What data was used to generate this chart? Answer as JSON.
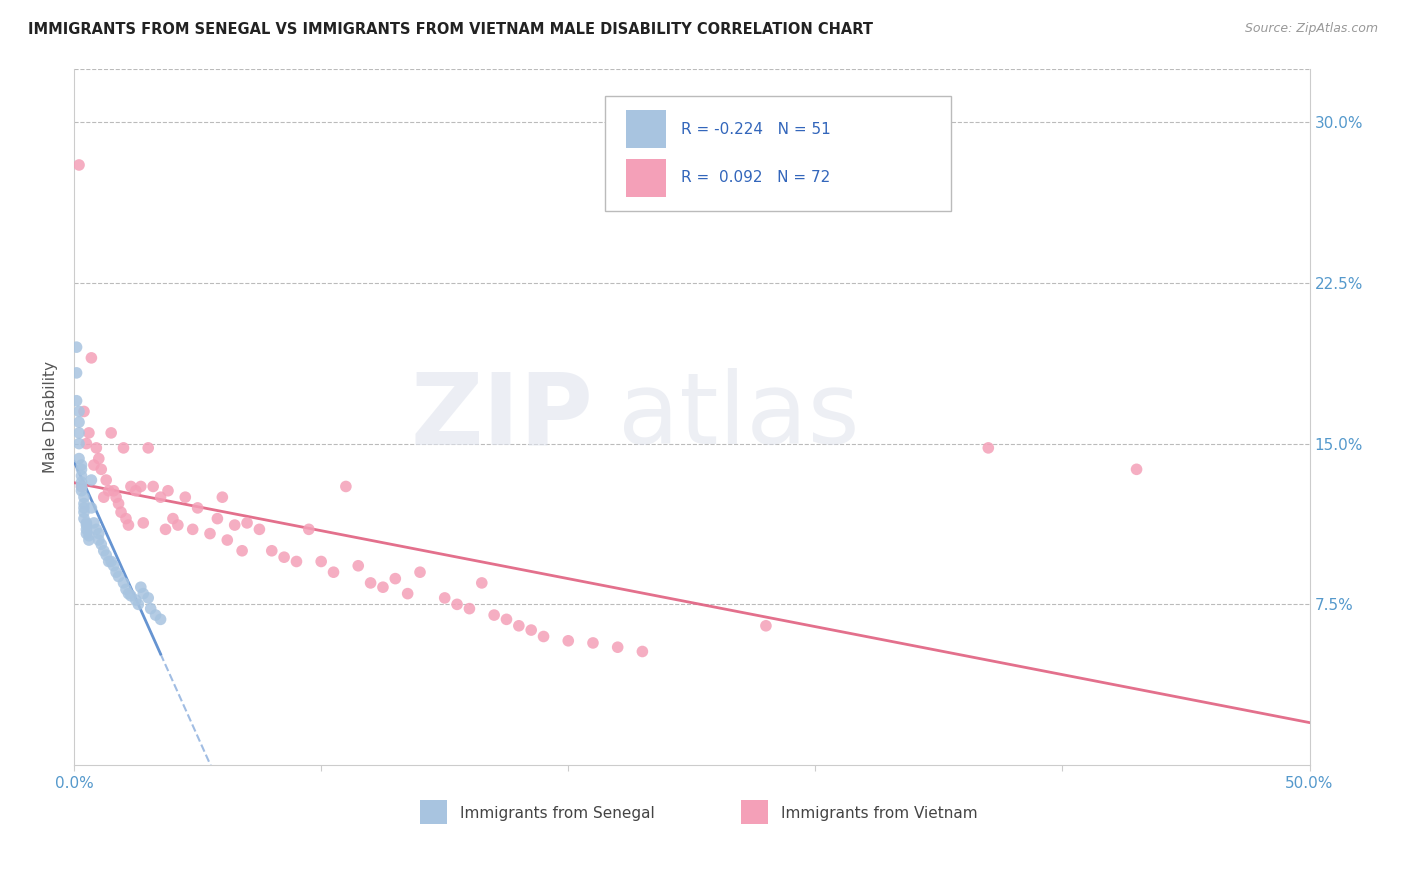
{
  "title": "IMMIGRANTS FROM SENEGAL VS IMMIGRANTS FROM VIETNAM MALE DISABILITY CORRELATION CHART",
  "source": "Source: ZipAtlas.com",
  "ylabel": "Male Disability",
  "xlim": [
    0.0,
    0.5
  ],
  "ylim": [
    0.0,
    0.325
  ],
  "ytick_positions": [
    0.075,
    0.15,
    0.225,
    0.3
  ],
  "ytick_labels": [
    "7.5%",
    "15.0%",
    "22.5%",
    "30.0%"
  ],
  "legend_R1": "-0.224",
  "legend_N1": "51",
  "legend_R2": "0.092",
  "legend_N2": "72",
  "color_senegal": "#a8c4e0",
  "color_vietnam": "#f4a0b8",
  "trendline_senegal_color": "#5588cc",
  "trendline_vietnam_color": "#e06080",
  "senegal_x": [
    0.001,
    0.001,
    0.001,
    0.002,
    0.002,
    0.002,
    0.002,
    0.002,
    0.003,
    0.003,
    0.003,
    0.003,
    0.003,
    0.003,
    0.004,
    0.004,
    0.004,
    0.004,
    0.004,
    0.005,
    0.005,
    0.005,
    0.005,
    0.006,
    0.006,
    0.007,
    0.007,
    0.008,
    0.009,
    0.01,
    0.01,
    0.011,
    0.012,
    0.013,
    0.014,
    0.015,
    0.016,
    0.017,
    0.018,
    0.02,
    0.021,
    0.022,
    0.023,
    0.025,
    0.026,
    0.027,
    0.028,
    0.03,
    0.031,
    0.033,
    0.035
  ],
  "senegal_y": [
    0.195,
    0.183,
    0.17,
    0.165,
    0.16,
    0.155,
    0.15,
    0.143,
    0.14,
    0.138,
    0.135,
    0.132,
    0.13,
    0.128,
    0.125,
    0.122,
    0.12,
    0.118,
    0.115,
    0.113,
    0.112,
    0.11,
    0.108,
    0.107,
    0.105,
    0.133,
    0.12,
    0.113,
    0.11,
    0.108,
    0.105,
    0.103,
    0.1,
    0.098,
    0.095,
    0.095,
    0.093,
    0.09,
    0.088,
    0.085,
    0.082,
    0.08,
    0.079,
    0.077,
    0.075,
    0.083,
    0.08,
    0.078,
    0.073,
    0.07,
    0.068
  ],
  "vietnam_x": [
    0.002,
    0.003,
    0.004,
    0.005,
    0.006,
    0.007,
    0.008,
    0.009,
    0.01,
    0.011,
    0.012,
    0.013,
    0.014,
    0.015,
    0.016,
    0.017,
    0.018,
    0.019,
    0.02,
    0.021,
    0.022,
    0.023,
    0.025,
    0.027,
    0.028,
    0.03,
    0.032,
    0.035,
    0.037,
    0.038,
    0.04,
    0.042,
    0.045,
    0.048,
    0.05,
    0.055,
    0.058,
    0.06,
    0.062,
    0.065,
    0.068,
    0.07,
    0.075,
    0.08,
    0.085,
    0.09,
    0.095,
    0.1,
    0.105,
    0.11,
    0.115,
    0.12,
    0.125,
    0.13,
    0.135,
    0.14,
    0.15,
    0.155,
    0.16,
    0.165,
    0.17,
    0.175,
    0.18,
    0.185,
    0.19,
    0.2,
    0.21,
    0.22,
    0.23,
    0.28,
    0.37,
    0.43
  ],
  "vietnam_y": [
    0.28,
    0.13,
    0.165,
    0.15,
    0.155,
    0.19,
    0.14,
    0.148,
    0.143,
    0.138,
    0.125,
    0.133,
    0.128,
    0.155,
    0.128,
    0.125,
    0.122,
    0.118,
    0.148,
    0.115,
    0.112,
    0.13,
    0.128,
    0.13,
    0.113,
    0.148,
    0.13,
    0.125,
    0.11,
    0.128,
    0.115,
    0.112,
    0.125,
    0.11,
    0.12,
    0.108,
    0.115,
    0.125,
    0.105,
    0.112,
    0.1,
    0.113,
    0.11,
    0.1,
    0.097,
    0.095,
    0.11,
    0.095,
    0.09,
    0.13,
    0.093,
    0.085,
    0.083,
    0.087,
    0.08,
    0.09,
    0.078,
    0.075,
    0.073,
    0.085,
    0.07,
    0.068,
    0.065,
    0.063,
    0.06,
    0.058,
    0.057,
    0.055,
    0.053,
    0.065,
    0.148,
    0.138
  ]
}
